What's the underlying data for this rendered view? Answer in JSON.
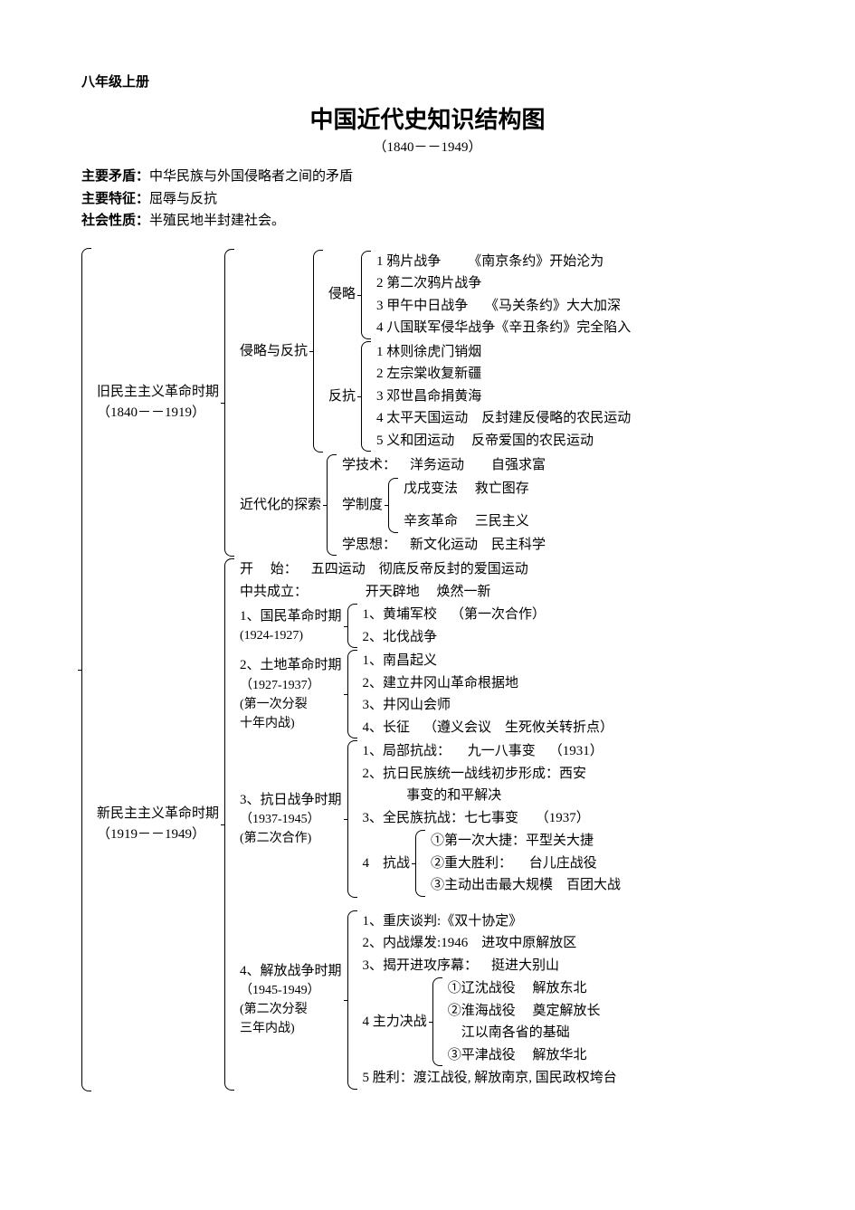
{
  "header": {
    "grade": "八年级上册"
  },
  "title": "中国近代史知识结构图",
  "subtitle": "（1840－－1949）",
  "meta": {
    "m1_label": "主要矛盾：",
    "m1": "中华民族与外国侵略者之间的矛盾",
    "m2_label": "主要特征：",
    "m2": "屈辱与反抗",
    "m3_label": "社会性质：",
    "m3": "半殖民地半封建社会。"
  },
  "old": {
    "label1": "旧民主主义革命时期",
    "label2": "（1840－－1919）",
    "a_label": "侵略与反抗",
    "invade_label": "侵略",
    "invade": {
      "i1": "1 鸦片战争  《南京条约》开始沦为",
      "i2": "2 第二次鸦片战争",
      "i3": "3 甲午中日战争  《马关条约》大大加深",
      "i4": "4 八国联军侵华战争《辛丑条约》完全陷入"
    },
    "resist_label": "反抗",
    "resist": {
      "r1": "1 林则徐虎门销烟",
      "r2": "2 左宗棠收复新疆",
      "r3": "3 邓世昌命捐黄海",
      "r4": "4 太平天国运动 反封建反侵略的农民运动",
      "r5": "5 义和团运动  反帝爱国的农民运动"
    },
    "b_label": "近代化的探索",
    "tech": "学技术： 洋务运动  自强求富",
    "inst_label": "学制度",
    "inst": {
      "s1": "戊戌变法  救亡图存",
      "s2": "辛亥革命  三民主义"
    },
    "thought": "学思想： 新文化运动 民主科学"
  },
  "new": {
    "label1": "新民主主义革命时期",
    "label2": "（1919－－1949）",
    "start": "开  始： 五四运动 彻底反帝反封的爱国运动",
    "ccp": "中共成立：     开天辟地  焕然一新",
    "p1_label1": "1、国民革命时期",
    "p1_label2": "(1924-1927)",
    "p1": {
      "a": "1、黄埔军校 （第一次合作）",
      "b": "2、北伐战争"
    },
    "p2_label1": "2、土地革命时期",
    "p2_label2": "（1927-1937）",
    "p2_label3": "(第一次分裂",
    "p2_label4": "十年内战)",
    "p2": {
      "a": "1、南昌起义",
      "b": "2、建立井冈山革命根据地",
      "c": "3、井冈山会师",
      "d": "4、长征 （遵义会议 生死攸关转折点）"
    },
    "p3_label1": "3、抗日战争时期",
    "p3_label2": "（1937-1945）",
    "p3_label3": "(第二次合作)",
    "p3": {
      "a": "1、局部抗战：  九一八事变 （1931）",
      "b": "2、抗日民族统一战线初步形成：西安",
      "b2": "    事变的和平解决",
      "c": "3、全民族抗战：七七事变  （1937）",
      "battle_label": "4 抗战",
      "battle": {
        "x": "①第一次大捷：平型关大捷",
        "y": "②重大胜利：  台儿庄战役",
        "z": "③主动出击最大规模 百团大战"
      }
    },
    "p4_label1": "4、解放战争时期",
    "p4_label2": "（1945-1949）",
    "p4_label3": "(第二次分裂",
    "p4_label4": "三年内战)",
    "p4": {
      "a": "1、重庆谈判:《双十协定》",
      "b": "2、内战爆发:1946 进攻中原解放区",
      "c": "3、揭开进攻序幕： 挺进大别山",
      "decisive_label": "4 主力决战",
      "decisive": {
        "x": "①辽沈战役  解放东北",
        "y": "②淮海战役  奠定解放长",
        "y2": " 江以南各省的基础",
        "z": "③平津战役  解放华北"
      },
      "e": "5 胜利：渡江战役, 解放南京, 国民政权垮台"
    }
  },
  "style": {
    "background_color": "#ffffff",
    "text_color": "#000000",
    "font_family": "SimSun",
    "title_fontsize": 26,
    "body_fontsize": 15,
    "bracket_border": "1px solid #000",
    "bracket_radius": 8
  }
}
